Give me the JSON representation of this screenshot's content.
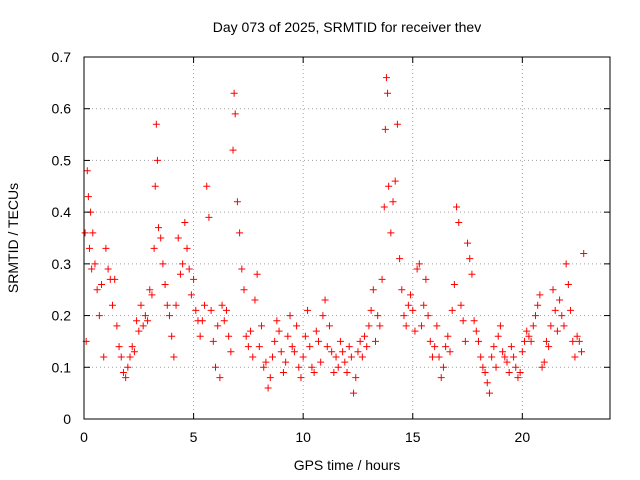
{
  "chart_data": {
    "type": "scatter",
    "title": "Day 073 of 2025, SRMTID for receiver thev",
    "xlabel": "GPS time / hours",
    "ylabel": "SRMTID / TECUs",
    "xlim": [
      0,
      24
    ],
    "ylim": [
      0,
      0.7
    ],
    "xticks": [
      0,
      5,
      10,
      15,
      20
    ],
    "yticks": [
      0,
      0.1,
      0.2,
      0.3,
      0.4,
      0.5,
      0.6,
      0.7
    ],
    "grid": true,
    "marker": "plus",
    "color": "#ff0000",
    "series": [
      {
        "name": "SRMTID",
        "points": [
          [
            0.05,
            0.36
          ],
          [
            0.1,
            0.15
          ],
          [
            0.15,
            0.48
          ],
          [
            0.2,
            0.43
          ],
          [
            0.25,
            0.33
          ],
          [
            0.3,
            0.4
          ],
          [
            0.35,
            0.29
          ],
          [
            0.4,
            0.36
          ],
          [
            0.5,
            0.3
          ],
          [
            0.6,
            0.25
          ],
          [
            0.7,
            0.2
          ],
          [
            0.8,
            0.26
          ],
          [
            0.9,
            0.12
          ],
          [
            1.0,
            0.33
          ],
          [
            1.1,
            0.29
          ],
          [
            1.2,
            0.27
          ],
          [
            1.3,
            0.22
          ],
          [
            1.4,
            0.27
          ],
          [
            1.5,
            0.18
          ],
          [
            1.6,
            0.14
          ],
          [
            1.7,
            0.12
          ],
          [
            1.8,
            0.09
          ],
          [
            1.9,
            0.08
          ],
          [
            2.0,
            0.1
          ],
          [
            2.1,
            0.12
          ],
          [
            2.2,
            0.14
          ],
          [
            2.3,
            0.13
          ],
          [
            2.4,
            0.19
          ],
          [
            2.5,
            0.17
          ],
          [
            2.6,
            0.22
          ],
          [
            2.7,
            0.18
          ],
          [
            2.8,
            0.2
          ],
          [
            2.9,
            0.19
          ],
          [
            3.0,
            0.25
          ],
          [
            3.1,
            0.24
          ],
          [
            3.2,
            0.33
          ],
          [
            3.25,
            0.45
          ],
          [
            3.3,
            0.57
          ],
          [
            3.35,
            0.5
          ],
          [
            3.4,
            0.37
          ],
          [
            3.5,
            0.35
          ],
          [
            3.6,
            0.3
          ],
          [
            3.7,
            0.26
          ],
          [
            3.8,
            0.22
          ],
          [
            3.9,
            0.2
          ],
          [
            4.0,
            0.16
          ],
          [
            4.1,
            0.12
          ],
          [
            4.2,
            0.22
          ],
          [
            4.3,
            0.35
          ],
          [
            4.4,
            0.28
          ],
          [
            4.5,
            0.3
          ],
          [
            4.6,
            0.38
          ],
          [
            4.7,
            0.33
          ],
          [
            4.8,
            0.29
          ],
          [
            4.9,
            0.24
          ],
          [
            5.0,
            0.27
          ],
          [
            5.1,
            0.21
          ],
          [
            5.2,
            0.19
          ],
          [
            5.3,
            0.16
          ],
          [
            5.4,
            0.19
          ],
          [
            5.5,
            0.22
          ],
          [
            5.6,
            0.45
          ],
          [
            5.7,
            0.39
          ],
          [
            5.8,
            0.21
          ],
          [
            5.9,
            0.15
          ],
          [
            6.0,
            0.1
          ],
          [
            6.1,
            0.18
          ],
          [
            6.2,
            0.08
          ],
          [
            6.3,
            0.22
          ],
          [
            6.4,
            0.19
          ],
          [
            6.5,
            0.21
          ],
          [
            6.6,
            0.16
          ],
          [
            6.7,
            0.13
          ],
          [
            6.8,
            0.52
          ],
          [
            6.85,
            0.63
          ],
          [
            6.9,
            0.59
          ],
          [
            7.0,
            0.42
          ],
          [
            7.1,
            0.36
          ],
          [
            7.2,
            0.29
          ],
          [
            7.3,
            0.25
          ],
          [
            7.4,
            0.16
          ],
          [
            7.5,
            0.14
          ],
          [
            7.6,
            0.17
          ],
          [
            7.7,
            0.12
          ],
          [
            7.8,
            0.23
          ],
          [
            7.9,
            0.28
          ],
          [
            8.0,
            0.14
          ],
          [
            8.1,
            0.18
          ],
          [
            8.2,
            0.1
          ],
          [
            8.3,
            0.11
          ],
          [
            8.4,
            0.06
          ],
          [
            8.5,
            0.08
          ],
          [
            8.6,
            0.12
          ],
          [
            8.7,
            0.15
          ],
          [
            8.8,
            0.19
          ],
          [
            8.9,
            0.17
          ],
          [
            9.0,
            0.13
          ],
          [
            9.1,
            0.09
          ],
          [
            9.2,
            0.11
          ],
          [
            9.3,
            0.16
          ],
          [
            9.4,
            0.2
          ],
          [
            9.5,
            0.14
          ],
          [
            9.6,
            0.13
          ],
          [
            9.7,
            0.18
          ],
          [
            9.8,
            0.1
          ],
          [
            9.9,
            0.08
          ],
          [
            10.0,
            0.12
          ],
          [
            10.1,
            0.16
          ],
          [
            10.2,
            0.21
          ],
          [
            10.3,
            0.14
          ],
          [
            10.4,
            0.1
          ],
          [
            10.5,
            0.09
          ],
          [
            10.6,
            0.17
          ],
          [
            10.7,
            0.15
          ],
          [
            10.8,
            0.11
          ],
          [
            10.9,
            0.2
          ],
          [
            11.0,
            0.23
          ],
          [
            11.1,
            0.14
          ],
          [
            11.2,
            0.18
          ],
          [
            11.3,
            0.13
          ],
          [
            11.4,
            0.09
          ],
          [
            11.5,
            0.12
          ],
          [
            11.6,
            0.1
          ],
          [
            11.7,
            0.15
          ],
          [
            11.8,
            0.13
          ],
          [
            11.9,
            0.11
          ],
          [
            12.0,
            0.09
          ],
          [
            12.1,
            0.14
          ],
          [
            12.2,
            0.12
          ],
          [
            12.3,
            0.05
          ],
          [
            12.4,
            0.08
          ],
          [
            12.5,
            0.13
          ],
          [
            12.6,
            0.15
          ],
          [
            12.7,
            0.12
          ],
          [
            12.8,
            0.16
          ],
          [
            12.9,
            0.14
          ],
          [
            13.0,
            0.18
          ],
          [
            13.1,
            0.21
          ],
          [
            13.2,
            0.25
          ],
          [
            13.3,
            0.15
          ],
          [
            13.4,
            0.2
          ],
          [
            13.5,
            0.18
          ],
          [
            13.6,
            0.27
          ],
          [
            13.7,
            0.41
          ],
          [
            13.75,
            0.56
          ],
          [
            13.8,
            0.66
          ],
          [
            13.85,
            0.63
          ],
          [
            13.9,
            0.45
          ],
          [
            14.0,
            0.36
          ],
          [
            14.1,
            0.42
          ],
          [
            14.2,
            0.46
          ],
          [
            14.3,
            0.57
          ],
          [
            14.4,
            0.31
          ],
          [
            14.5,
            0.25
          ],
          [
            14.6,
            0.2
          ],
          [
            14.7,
            0.18
          ],
          [
            14.8,
            0.22
          ],
          [
            14.9,
            0.24
          ],
          [
            15.0,
            0.21
          ],
          [
            15.1,
            0.17
          ],
          [
            15.2,
            0.29
          ],
          [
            15.3,
            0.3
          ],
          [
            15.4,
            0.18
          ],
          [
            15.5,
            0.22
          ],
          [
            15.6,
            0.27
          ],
          [
            15.7,
            0.2
          ],
          [
            15.8,
            0.15
          ],
          [
            15.9,
            0.12
          ],
          [
            16.0,
            0.14
          ],
          [
            16.1,
            0.18
          ],
          [
            16.2,
            0.12
          ],
          [
            16.3,
            0.08
          ],
          [
            16.4,
            0.1
          ],
          [
            16.5,
            0.14
          ],
          [
            16.6,
            0.16
          ],
          [
            16.7,
            0.13
          ],
          [
            16.8,
            0.21
          ],
          [
            16.9,
            0.26
          ],
          [
            17.0,
            0.41
          ],
          [
            17.1,
            0.38
          ],
          [
            17.2,
            0.22
          ],
          [
            17.3,
            0.19
          ],
          [
            17.4,
            0.15
          ],
          [
            17.5,
            0.34
          ],
          [
            17.6,
            0.31
          ],
          [
            17.7,
            0.28
          ],
          [
            17.8,
            0.19
          ],
          [
            17.9,
            0.17
          ],
          [
            18.0,
            0.15
          ],
          [
            18.1,
            0.12
          ],
          [
            18.2,
            0.1
          ],
          [
            18.3,
            0.09
          ],
          [
            18.4,
            0.07
          ],
          [
            18.5,
            0.05
          ],
          [
            18.6,
            0.12
          ],
          [
            18.7,
            0.14
          ],
          [
            18.8,
            0.1
          ],
          [
            18.9,
            0.16
          ],
          [
            19.0,
            0.18
          ],
          [
            19.1,
            0.13
          ],
          [
            19.2,
            0.12
          ],
          [
            19.3,
            0.11
          ],
          [
            19.4,
            0.09
          ],
          [
            19.5,
            0.14
          ],
          [
            19.6,
            0.12
          ],
          [
            19.7,
            0.1
          ],
          [
            19.8,
            0.08
          ],
          [
            19.9,
            0.09
          ],
          [
            20.0,
            0.13
          ],
          [
            20.1,
            0.15
          ],
          [
            20.2,
            0.17
          ],
          [
            20.3,
            0.16
          ],
          [
            20.4,
            0.15
          ],
          [
            20.5,
            0.18
          ],
          [
            20.6,
            0.2
          ],
          [
            20.7,
            0.22
          ],
          [
            20.8,
            0.24
          ],
          [
            20.9,
            0.1
          ],
          [
            21.0,
            0.11
          ],
          [
            21.1,
            0.15
          ],
          [
            21.2,
            0.14
          ],
          [
            21.3,
            0.18
          ],
          [
            21.4,
            0.25
          ],
          [
            21.5,
            0.21
          ],
          [
            21.6,
            0.17
          ],
          [
            21.7,
            0.23
          ],
          [
            21.8,
            0.2
          ],
          [
            21.9,
            0.18
          ],
          [
            22.0,
            0.3
          ],
          [
            22.1,
            0.26
          ],
          [
            22.2,
            0.21
          ],
          [
            22.3,
            0.15
          ],
          [
            22.4,
            0.12
          ],
          [
            22.5,
            0.16
          ],
          [
            22.6,
            0.15
          ],
          [
            22.7,
            0.13
          ],
          [
            22.8,
            0.32
          ]
        ]
      }
    ]
  }
}
